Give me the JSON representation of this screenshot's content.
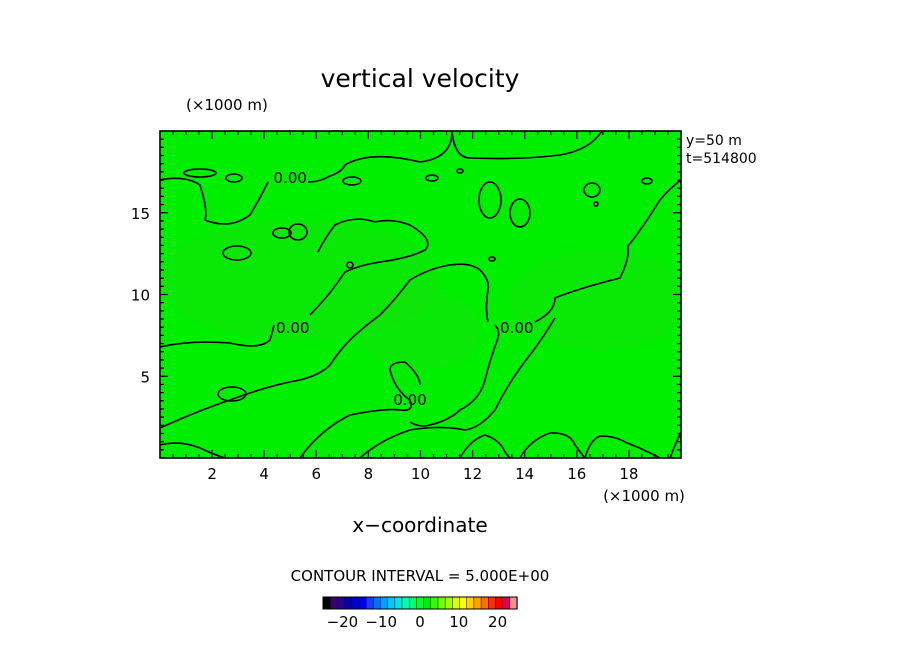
{
  "chart_data": {
    "type": "heatmap",
    "title": "vertical velocity",
    "xlabel": "x−coordinate",
    "x_unit": "(×1000 m)",
    "y_unit": "(×1000 m)",
    "xlim": [
      0,
      20
    ],
    "ylim": [
      0,
      20
    ],
    "x_ticks": [
      2,
      4,
      6,
      8,
      10,
      12,
      14,
      16,
      18
    ],
    "y_ticks": [
      5,
      10,
      15
    ],
    "info": [
      "y=50  m",
      "t=514800"
    ],
    "contour_interval_text": "CONTOUR INTERVAL = 5.000E+00",
    "contour_labels": [
      {
        "text": "0.00",
        "x": 5.0,
        "y": 17.2
      },
      {
        "text": "0.00",
        "x": 5.1,
        "y": 8.0
      },
      {
        "text": "0.00",
        "x": 9.6,
        "y": 3.6
      },
      {
        "text": "0.00",
        "x": 13.7,
        "y": 8.0
      }
    ],
    "colorbar": {
      "ticks": [
        -20,
        -10,
        0,
        10,
        20
      ],
      "range": [
        -25,
        25
      ],
      "colors": [
        "#000000",
        "#3a0070",
        "#2a0090",
        "#0000a8",
        "#0000cc",
        "#0000ee",
        "#1a38ff",
        "#0070ff",
        "#00a0ff",
        "#00c8ff",
        "#00e8e8",
        "#00ffb0",
        "#00ff70",
        "#00ff30",
        "#00ee00",
        "#30ff00",
        "#70ff00",
        "#a0ff00",
        "#d8ff00",
        "#ffff00",
        "#ffd000",
        "#ffa000",
        "#ff7000",
        "#ff3000",
        "#ff0000",
        "#e80050",
        "#ff9090"
      ]
    }
  }
}
